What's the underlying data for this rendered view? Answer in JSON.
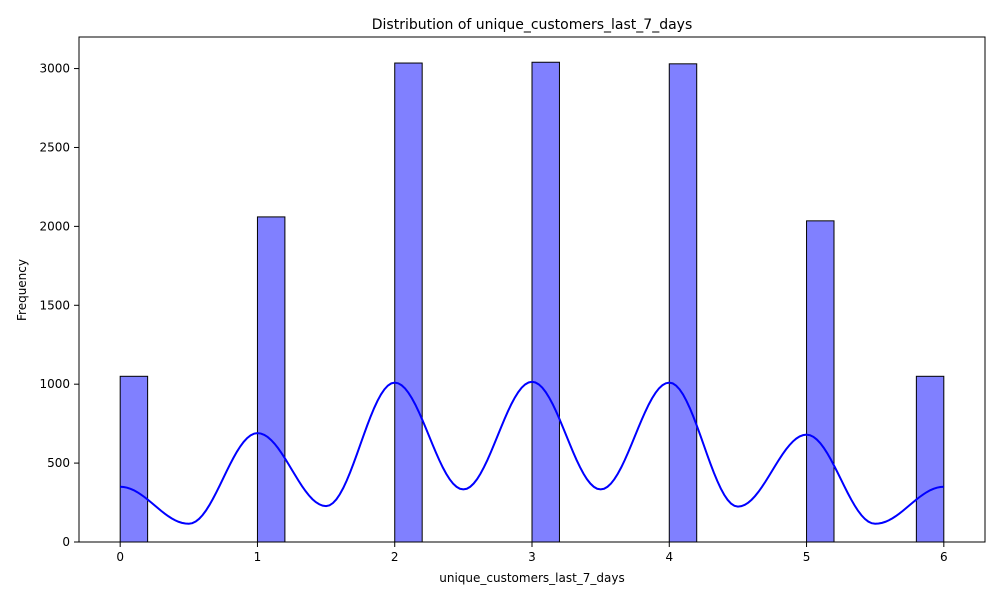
{
  "chart_data": {
    "type": "bar",
    "title": "Distribution of unique_customers_last_7_days",
    "xlabel": "unique_customers_last_7_days",
    "ylabel": "Frequency",
    "xlim": [
      -0.3,
      6.3
    ],
    "ylim": [
      0,
      3200
    ],
    "xticks": [
      0,
      1,
      2,
      3,
      4,
      5,
      6
    ],
    "yticks": [
      0,
      500,
      1000,
      1500,
      2000,
      2500,
      3000
    ],
    "grid": false,
    "bar_color": "#8080ff",
    "bar_edge_color": "#000000",
    "kde_color": "#0000ff",
    "bars": [
      {
        "x_start": 0.0,
        "x_end": 0.2,
        "value": 1050
      },
      {
        "x_start": 1.0,
        "x_end": 1.2,
        "value": 2060
      },
      {
        "x_start": 2.0,
        "x_end": 2.2,
        "value": 3035
      },
      {
        "x_start": 3.0,
        "x_end": 3.2,
        "value": 3040
      },
      {
        "x_start": 4.0,
        "x_end": 4.2,
        "value": 3030
      },
      {
        "x_start": 5.0,
        "x_end": 5.2,
        "value": 2035
      },
      {
        "x_start": 5.8,
        "x_end": 6.0,
        "value": 1050
      }
    ],
    "kde_peaks": [
      {
        "x": 0,
        "y": 350
      },
      {
        "x": 1,
        "y": 690
      },
      {
        "x": 2,
        "y": 1010
      },
      {
        "x": 3,
        "y": 1015
      },
      {
        "x": 4,
        "y": 1010
      },
      {
        "x": 5,
        "y": 680
      },
      {
        "x": 6,
        "y": 350
      }
    ]
  }
}
